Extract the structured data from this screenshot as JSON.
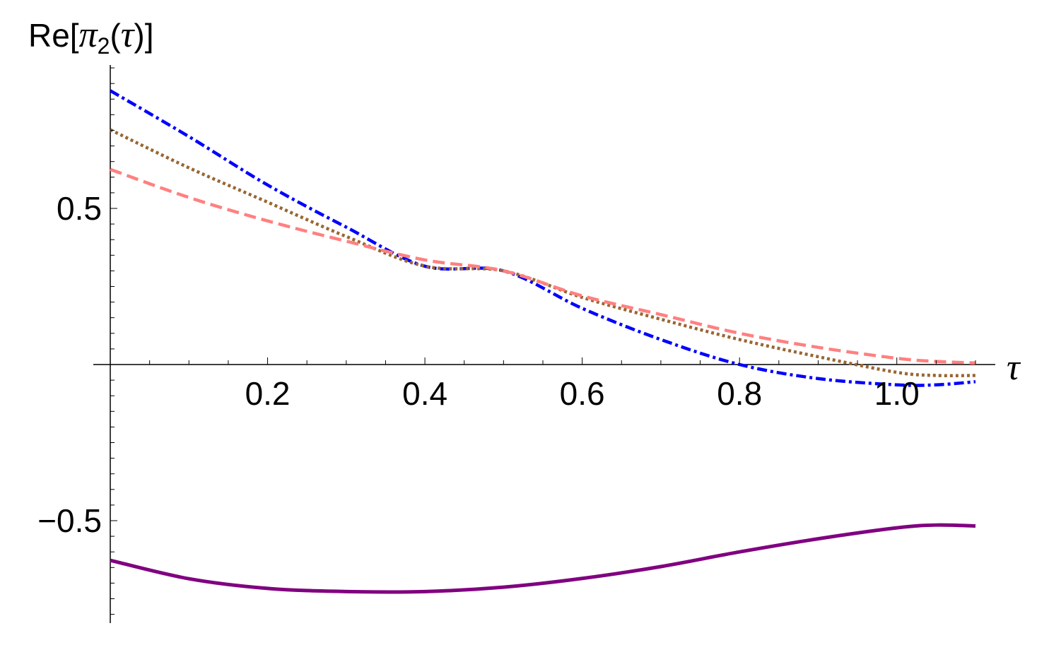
{
  "chart_data": {
    "type": "line",
    "title": "",
    "xlabel": "τ",
    "ylabel": "Re[π₂(τ)]",
    "ylabel_parts": {
      "prefix": "Re[",
      "symbol": "π",
      "subscript": "2",
      "arg": "(τ)",
      "suffix": "]"
    },
    "xlim": [
      0,
      1.1
    ],
    "ylim": [
      -0.82,
      0.96
    ],
    "x_ticks": [
      0.2,
      0.4,
      0.6,
      0.8,
      1.0
    ],
    "x_tick_labels": [
      "0.2",
      "0.4",
      "0.6",
      "0.8",
      "1.0"
    ],
    "y_ticks": [
      -0.5,
      0.5
    ],
    "y_tick_labels": [
      "−0.5",
      "0.5"
    ],
    "grid": false,
    "legend": "none",
    "x": [
      0,
      0.1,
      0.2,
      0.3,
      0.4,
      0.5,
      0.6,
      0.7,
      0.8,
      0.9,
      1.0,
      1.05,
      1.1
    ],
    "series": [
      {
        "style": "dash-dot",
        "color": "#0000ff",
        "values": [
          0.877,
          0.73,
          0.575,
          0.44,
          0.315,
          0.3,
          0.18,
          0.08,
          0.0,
          -0.045,
          -0.065,
          -0.065,
          -0.055
        ]
      },
      {
        "style": "dotted",
        "color": "#996633",
        "values": [
          0.752,
          0.63,
          0.52,
          0.41,
          0.315,
          0.3,
          0.215,
          0.145,
          0.08,
          0.025,
          -0.025,
          -0.035,
          -0.035
        ]
      },
      {
        "style": "dashed",
        "color": "#ff8080",
        "values": [
          0.625,
          0.535,
          0.46,
          0.395,
          0.335,
          0.3,
          0.22,
          0.16,
          0.1,
          0.055,
          0.02,
          0.01,
          0.005
        ]
      },
      {
        "style": "solid",
        "color": "#800080",
        "values": [
          -0.627,
          -0.686,
          -0.717,
          -0.727,
          -0.727,
          -0.713,
          -0.685,
          -0.647,
          -0.6,
          -0.558,
          -0.523,
          -0.514,
          -0.517
        ]
      }
    ]
  }
}
